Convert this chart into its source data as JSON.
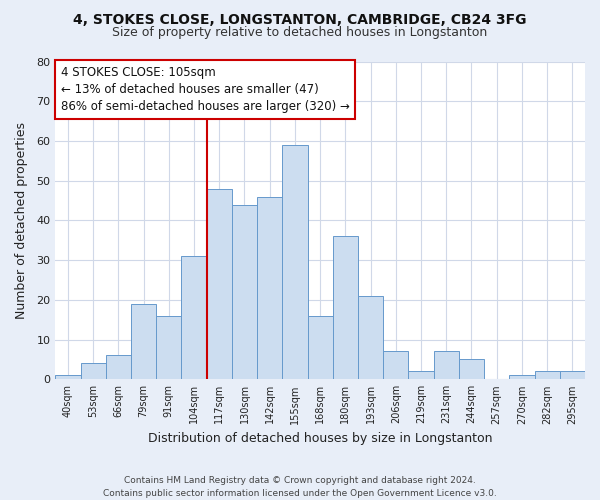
{
  "title": "4, STOKES CLOSE, LONGSTANTON, CAMBRIDGE, CB24 3FG",
  "subtitle": "Size of property relative to detached houses in Longstanton",
  "xlabel": "Distribution of detached houses by size in Longstanton",
  "ylabel": "Number of detached properties",
  "footer_line1": "Contains HM Land Registry data © Crown copyright and database right 2024.",
  "footer_line2": "Contains public sector information licensed under the Open Government Licence v3.0.",
  "bin_labels": [
    "40sqm",
    "53sqm",
    "66sqm",
    "79sqm",
    "91sqm",
    "104sqm",
    "117sqm",
    "130sqm",
    "142sqm",
    "155sqm",
    "168sqm",
    "180sqm",
    "193sqm",
    "206sqm",
    "219sqm",
    "231sqm",
    "244sqm",
    "257sqm",
    "270sqm",
    "282sqm",
    "295sqm"
  ],
  "bar_values": [
    1,
    4,
    6,
    19,
    16,
    31,
    48,
    44,
    46,
    59,
    16,
    36,
    21,
    7,
    2,
    7,
    5,
    0,
    1,
    2,
    2
  ],
  "bar_color": "#ccddf0",
  "bar_edge_color": "#6699cc",
  "highlight_x_label": "104sqm",
  "highlight_line_color": "#cc0000",
  "annotation_title": "4 STOKES CLOSE: 105sqm",
  "annotation_line1": "← 13% of detached houses are smaller (47)",
  "annotation_line2": "86% of semi-detached houses are larger (320) →",
  "annotation_box_edge": "#cc0000",
  "ylim": [
    0,
    80
  ],
  "yticks": [
    0,
    10,
    20,
    30,
    40,
    50,
    60,
    70,
    80
  ],
  "background_color": "#e8eef8",
  "plot_background": "#ffffff",
  "grid_color": "#d0d8e8"
}
